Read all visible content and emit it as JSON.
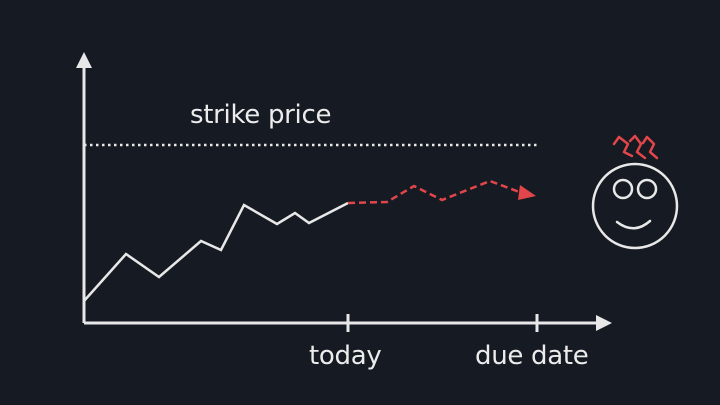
{
  "labels": {
    "strike_price": "strike price",
    "today": "today",
    "due_date": "due date"
  },
  "colors": {
    "background": "#161a23",
    "foreground": "#e8e8e8",
    "projection": "#e2464a",
    "steam": "#e2464a"
  },
  "icons": {
    "worried_face": "sweating-face-icon",
    "steam": "steam-icon"
  }
}
